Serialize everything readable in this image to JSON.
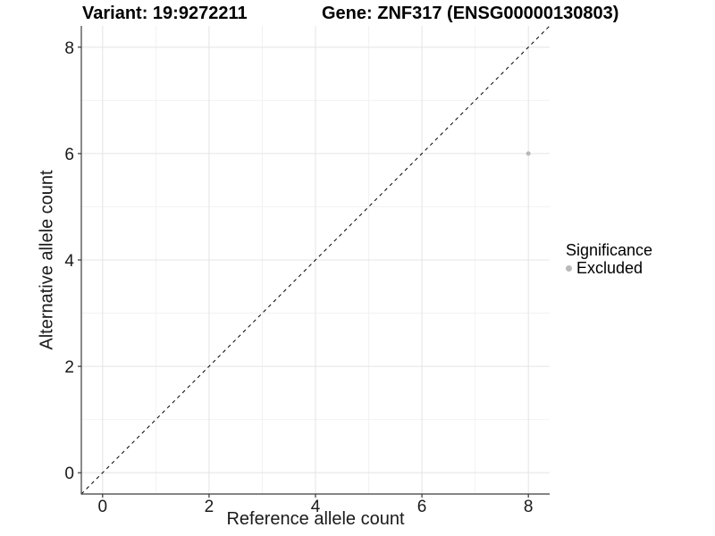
{
  "titles": {
    "variant": "Variant: 19:9272211",
    "gene": "Gene: ZNF317 (ENSG00000130803)"
  },
  "legend": {
    "title": "Significance",
    "items": [
      {
        "label": "Excluded",
        "color": "#b9b9b9"
      }
    ]
  },
  "colors": {
    "background": "#ffffff",
    "grid_major": "#e4e4e4",
    "grid_minor": "#f2f2f2",
    "axis_line": "#3c3c3c",
    "tick": "#333333",
    "text": "#1a1a1a",
    "excluded_point": "#b9b9b9",
    "reference_line": "#000000"
  },
  "chart_data": {
    "type": "scatter",
    "title": "Variant: 19:9272211 | Gene: ZNF317 (ENSG00000130803)",
    "xlabel": "Reference allele count",
    "ylabel": "Alternative allele count",
    "xlim": [
      -0.4,
      8.4
    ],
    "ylim": [
      -0.4,
      8.4
    ],
    "x_ticks": [
      0,
      2,
      4,
      6,
      8
    ],
    "y_ticks": [
      0,
      2,
      4,
      6,
      8
    ],
    "x_minor_ticks": [
      1,
      3,
      5,
      7
    ],
    "y_minor_ticks": [
      1,
      3,
      5,
      7
    ],
    "grid": "major+minor",
    "legend_position": "right",
    "series": [
      {
        "name": "Excluded",
        "color": "#b9b9b9",
        "points": [
          {
            "x": 8,
            "y": 6
          }
        ]
      }
    ],
    "reference_line": {
      "type": "identity",
      "from": [
        -0.4,
        -0.4
      ],
      "to": [
        8.4,
        8.4
      ],
      "style": "dashed",
      "color": "#000000"
    }
  }
}
